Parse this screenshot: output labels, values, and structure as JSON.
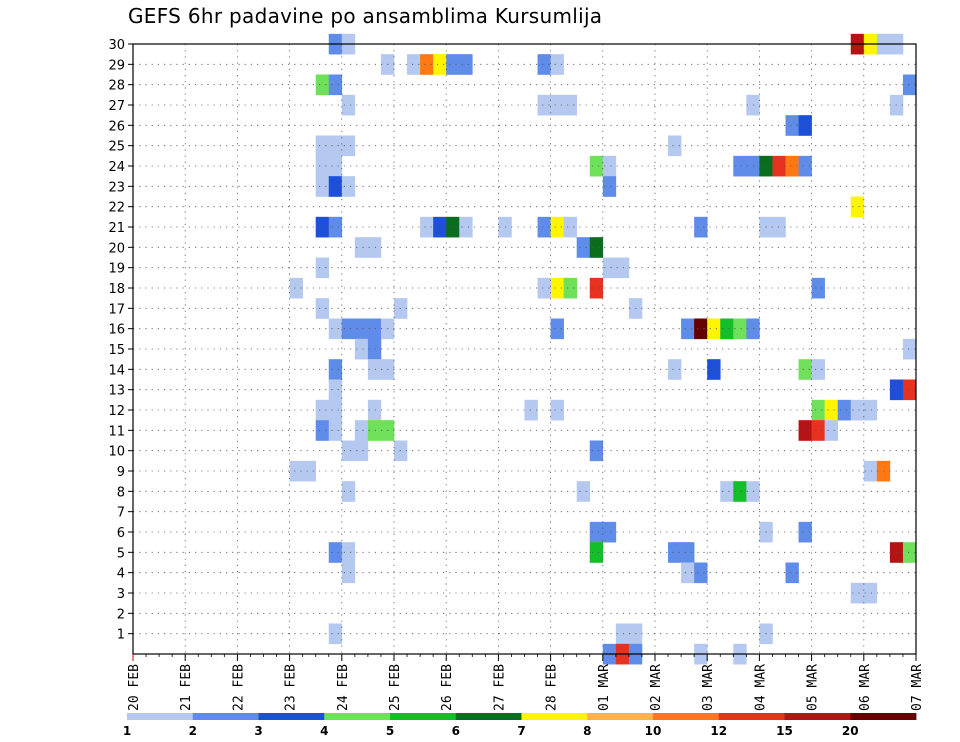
{
  "chart_data": {
    "type": "heatmap",
    "title": "GEFS 6hr padavine po ansamblima Kursumlija",
    "xlabel": "",
    "ylabel": "",
    "x_ticks": [
      "20 FEB",
      "21 FEB",
      "22 FEB",
      "23 FEB",
      "24 FEB",
      "25 FEB",
      "26 FEB",
      "27 FEB",
      "28 FEB",
      "01 MAR",
      "02 MAR",
      "03 MAR",
      "04 MAR",
      "05 MAR",
      "06 MAR",
      "07 MAR"
    ],
    "y_ticks": [
      "1",
      "2",
      "3",
      "4",
      "5",
      "6",
      "7",
      "8",
      "9",
      "10",
      "11",
      "12",
      "13",
      "14",
      "15",
      "16",
      "17",
      "18",
      "19",
      "20",
      "21",
      "22",
      "23",
      "24",
      "25",
      "26",
      "27",
      "28",
      "29",
      "30"
    ],
    "ylim": [
      0,
      30
    ],
    "time_step_hours": 6,
    "grid": true,
    "color_scale": {
      "thresholds": [
        "1",
        "2",
        "3",
        "4",
        "5",
        "6",
        "7",
        "8",
        "10",
        "12",
        "15",
        "20"
      ],
      "colors": [
        "#b4c8f0",
        "#5f8ce8",
        "#1e4fd8",
        "#6ee05a",
        "#14be28",
        "#0a6e1e",
        "#fff500",
        "#ffb440",
        "#ff7814",
        "#e6321e",
        "#b41414",
        "#640000"
      ]
    },
    "cells": [
      {
        "member": 30,
        "time": "23 FEB 18Z",
        "value": 2
      },
      {
        "member": 30,
        "time": "24 FEB 00Z",
        "value": 1
      },
      {
        "member": 30,
        "time": "05 MAR 18Z",
        "value": 15
      },
      {
        "member": 30,
        "time": "06 MAR 00Z",
        "value": 7
      },
      {
        "member": 30,
        "time": "06 MAR 06Z",
        "value": 1
      },
      {
        "member": 30,
        "time": "06 MAR 12Z",
        "value": 1
      },
      {
        "member": 29,
        "time": "24 FEB 18Z",
        "value": 1
      },
      {
        "member": 29,
        "time": "25 FEB 06Z",
        "value": 1
      },
      {
        "member": 29,
        "time": "25 FEB 12Z",
        "value": 10
      },
      {
        "member": 29,
        "time": "25 FEB 18Z",
        "value": 7
      },
      {
        "member": 29,
        "time": "26 FEB 00Z",
        "value": 2
      },
      {
        "member": 29,
        "time": "26 FEB 06Z",
        "value": 2
      },
      {
        "member": 29,
        "time": "27 FEB 18Z",
        "value": 2
      },
      {
        "member": 29,
        "time": "28 FEB 00Z",
        "value": 1
      },
      {
        "member": 28,
        "time": "23 FEB 12Z",
        "value": 4
      },
      {
        "member": 28,
        "time": "23 FEB 18Z",
        "value": 2
      },
      {
        "member": 28,
        "time": "06 MAR 18Z",
        "value": 2
      },
      {
        "member": 27,
        "time": "24 FEB 00Z",
        "value": 1
      },
      {
        "member": 27,
        "time": "27 FEB 18Z",
        "value": 1
      },
      {
        "member": 27,
        "time": "28 FEB 00Z",
        "value": 1
      },
      {
        "member": 27,
        "time": "28 FEB 06Z",
        "value": 1
      },
      {
        "member": 27,
        "time": "03 MAR 18Z",
        "value": 1
      },
      {
        "member": 27,
        "time": "06 MAR 12Z",
        "value": 1
      },
      {
        "member": 26,
        "time": "04 MAR 12Z",
        "value": 2
      },
      {
        "member": 26,
        "time": "04 MAR 18Z",
        "value": 3
      },
      {
        "member": 25,
        "time": "23 FEB 12Z",
        "value": 1
      },
      {
        "member": 25,
        "time": "23 FEB 18Z",
        "value": 1
      },
      {
        "member": 25,
        "time": "24 FEB 00Z",
        "value": 1
      },
      {
        "member": 25,
        "time": "02 MAR 06Z",
        "value": 1
      },
      {
        "member": 24,
        "time": "23 FEB 12Z",
        "value": 1
      },
      {
        "member": 24,
        "time": "23 FEB 18Z",
        "value": 1
      },
      {
        "member": 24,
        "time": "28 FEB 18Z",
        "value": 4
      },
      {
        "member": 24,
        "time": "01 MAR 00Z",
        "value": 1
      },
      {
        "member": 24,
        "time": "03 MAR 12Z",
        "value": 2
      },
      {
        "member": 24,
        "time": "03 MAR 18Z",
        "value": 2
      },
      {
        "member": 24,
        "time": "04 MAR 00Z",
        "value": 6
      },
      {
        "member": 24,
        "time": "04 MAR 06Z",
        "value": 12
      },
      {
        "member": 24,
        "time": "04 MAR 12Z",
        "value": 10
      },
      {
        "member": 24,
        "time": "04 MAR 18Z",
        "value": 2
      },
      {
        "member": 23,
        "time": "23 FEB 12Z",
        "value": 1
      },
      {
        "member": 23,
        "time": "23 FEB 18Z",
        "value": 3
      },
      {
        "member": 23,
        "time": "24 FEB 00Z",
        "value": 1
      },
      {
        "member": 23,
        "time": "01 MAR 00Z",
        "value": 2
      },
      {
        "member": 22,
        "time": "05 MAR 18Z",
        "value": 7
      },
      {
        "member": 21,
        "time": "23 FEB 12Z",
        "value": 3
      },
      {
        "member": 21,
        "time": "23 FEB 18Z",
        "value": 2
      },
      {
        "member": 21,
        "time": "25 FEB 12Z",
        "value": 1
      },
      {
        "member": 21,
        "time": "25 FEB 18Z",
        "value": 3
      },
      {
        "member": 21,
        "time": "26 FEB 00Z",
        "value": 6
      },
      {
        "member": 21,
        "time": "26 FEB 06Z",
        "value": 1
      },
      {
        "member": 21,
        "time": "27 FEB 00Z",
        "value": 1
      },
      {
        "member": 21,
        "time": "27 FEB 18Z",
        "value": 2
      },
      {
        "member": 21,
        "time": "28 FEB 00Z",
        "value": 7
      },
      {
        "member": 21,
        "time": "28 FEB 06Z",
        "value": 1
      },
      {
        "member": 21,
        "time": "02 MAR 18Z",
        "value": 2
      },
      {
        "member": 21,
        "time": "04 MAR 00Z",
        "value": 1
      },
      {
        "member": 21,
        "time": "04 MAR 06Z",
        "value": 1
      },
      {
        "member": 20,
        "time": "24 FEB 06Z",
        "value": 1
      },
      {
        "member": 20,
        "time": "24 FEB 12Z",
        "value": 1
      },
      {
        "member": 20,
        "time": "28 FEB 12Z",
        "value": 2
      },
      {
        "member": 20,
        "time": "28 FEB 18Z",
        "value": 6
      },
      {
        "member": 19,
        "time": "23 FEB 12Z",
        "value": 1
      },
      {
        "member": 19,
        "time": "01 MAR 00Z",
        "value": 1
      },
      {
        "member": 19,
        "time": "01 MAR 06Z",
        "value": 1
      },
      {
        "member": 18,
        "time": "23 FEB 00Z",
        "value": 1
      },
      {
        "member": 18,
        "time": "28 FEB 18Z",
        "value": 12
      },
      {
        "member": 18,
        "time": "28 FEB 00Z",
        "value": 7
      },
      {
        "member": 18,
        "time": "28 FEB 06Z",
        "value": 4
      },
      {
        "member": 18,
        "time": "27 FEB 18Z",
        "value": 1
      },
      {
        "member": 18,
        "time": "05 MAR 00Z",
        "value": 2
      },
      {
        "member": 17,
        "time": "23 FEB 12Z",
        "value": 1
      },
      {
        "member": 17,
        "time": "25 FEB 00Z",
        "value": 1
      },
      {
        "member": 17,
        "time": "01 MAR 12Z",
        "value": 1
      },
      {
        "member": 16,
        "time": "23 FEB 18Z",
        "value": 1
      },
      {
        "member": 16,
        "time": "24 FEB 00Z",
        "value": 2
      },
      {
        "member": 16,
        "time": "24 FEB 06Z",
        "value": 2
      },
      {
        "member": 16,
        "time": "24 FEB 12Z",
        "value": 2
      },
      {
        "member": 16,
        "time": "24 FEB 18Z",
        "value": 1
      },
      {
        "member": 16,
        "time": "28 FEB 00Z",
        "value": 2
      },
      {
        "member": 16,
        "time": "02 MAR 12Z",
        "value": 2
      },
      {
        "member": 16,
        "time": "02 MAR 18Z",
        "value": 20
      },
      {
        "member": 16,
        "time": "03 MAR 00Z",
        "value": 7
      },
      {
        "member": 16,
        "time": "03 MAR 06Z",
        "value": 5
      },
      {
        "member": 16,
        "time": "03 MAR 12Z",
        "value": 4
      },
      {
        "member": 16,
        "time": "03 MAR 18Z",
        "value": 2
      },
      {
        "member": 15,
        "time": "24 FEB 06Z",
        "value": 1
      },
      {
        "member": 15,
        "time": "24 FEB 12Z",
        "value": 2
      },
      {
        "member": 15,
        "time": "06 MAR 18Z",
        "value": 1
      },
      {
        "member": 14,
        "time": "23 FEB 18Z",
        "value": 2
      },
      {
        "member": 14,
        "time": "24 FEB 12Z",
        "value": 1
      },
      {
        "member": 14,
        "time": "24 FEB 18Z",
        "value": 1
      },
      {
        "member": 14,
        "time": "02 MAR 06Z",
        "value": 1
      },
      {
        "member": 14,
        "time": "03 MAR 00Z",
        "value": 3
      },
      {
        "member": 14,
        "time": "04 MAR 18Z",
        "value": 4
      },
      {
        "member": 14,
        "time": "05 MAR 00Z",
        "value": 1
      },
      {
        "member": 13,
        "time": "23 FEB 18Z",
        "value": 1
      },
      {
        "member": 13,
        "time": "06 MAR 12Z",
        "value": 3
      },
      {
        "member": 13,
        "time": "06 MAR 18Z",
        "value": 12
      },
      {
        "member": 12,
        "time": "23 FEB 12Z",
        "value": 1
      },
      {
        "member": 12,
        "time": "23 FEB 18Z",
        "value": 1
      },
      {
        "member": 12,
        "time": "24 FEB 12Z",
        "value": 1
      },
      {
        "member": 12,
        "time": "27 FEB 12Z",
        "value": 1
      },
      {
        "member": 12,
        "time": "28 FEB 00Z",
        "value": 1
      },
      {
        "member": 12,
        "time": "05 MAR 00Z",
        "value": 4
      },
      {
        "member": 12,
        "time": "05 MAR 06Z",
        "value": 7
      },
      {
        "member": 12,
        "time": "05 MAR 12Z",
        "value": 2
      },
      {
        "member": 12,
        "time": "05 MAR 18Z",
        "value": 1
      },
      {
        "member": 12,
        "time": "06 MAR 00Z",
        "value": 1
      },
      {
        "member": 11,
        "time": "23 FEB 12Z",
        "value": 2
      },
      {
        "member": 11,
        "time": "23 FEB 18Z",
        "value": 1
      },
      {
        "member": 11,
        "time": "24 FEB 06Z",
        "value": 1
      },
      {
        "member": 11,
        "time": "24 FEB 12Z",
        "value": 4
      },
      {
        "member": 11,
        "time": "24 FEB 18Z",
        "value": 4
      },
      {
        "member": 11,
        "time": "04 MAR 18Z",
        "value": 15
      },
      {
        "member": 11,
        "time": "05 MAR 00Z",
        "value": 12
      },
      {
        "member": 11,
        "time": "05 MAR 06Z",
        "value": 1
      },
      {
        "member": 10,
        "time": "24 FEB 00Z",
        "value": 1
      },
      {
        "member": 10,
        "time": "24 FEB 06Z",
        "value": 1
      },
      {
        "member": 10,
        "time": "25 FEB 00Z",
        "value": 1
      },
      {
        "member": 10,
        "time": "28 FEB 18Z",
        "value": 2
      },
      {
        "member": 9,
        "time": "23 FEB 00Z",
        "value": 1
      },
      {
        "member": 9,
        "time": "23 FEB 06Z",
        "value": 1
      },
      {
        "member": 9,
        "time": "06 MAR 00Z",
        "value": 1
      },
      {
        "member": 9,
        "time": "06 MAR 06Z",
        "value": 10
      },
      {
        "member": 8,
        "time": "24 FEB 00Z",
        "value": 1
      },
      {
        "member": 8,
        "time": "28 FEB 12Z",
        "value": 1
      },
      {
        "member": 8,
        "time": "03 MAR 06Z",
        "value": 1
      },
      {
        "member": 8,
        "time": "03 MAR 12Z",
        "value": 5
      },
      {
        "member": 8,
        "time": "03 MAR 18Z",
        "value": 1
      },
      {
        "member": 6,
        "time": "28 FEB 18Z",
        "value": 2
      },
      {
        "member": 6,
        "time": "01 MAR 00Z",
        "value": 2
      },
      {
        "member": 6,
        "time": "04 MAR 00Z",
        "value": 1
      },
      {
        "member": 6,
        "time": "04 MAR 18Z",
        "value": 2
      },
      {
        "member": 5,
        "time": "23 FEB 18Z",
        "value": 2
      },
      {
        "member": 5,
        "time": "24 FEB 00Z",
        "value": 1
      },
      {
        "member": 5,
        "time": "28 FEB 18Z",
        "value": 5
      },
      {
        "member": 5,
        "time": "02 MAR 06Z",
        "value": 2
      },
      {
        "member": 5,
        "time": "02 MAR 12Z",
        "value": 2
      },
      {
        "member": 5,
        "time": "06 MAR 12Z",
        "value": 15
      },
      {
        "member": 5,
        "time": "06 MAR 18Z",
        "value": 4
      },
      {
        "member": 4,
        "time": "24 FEB 00Z",
        "value": 1
      },
      {
        "member": 4,
        "time": "02 MAR 12Z",
        "value": 1
      },
      {
        "member": 4,
        "time": "02 MAR 18Z",
        "value": 2
      },
      {
        "member": 4,
        "time": "04 MAR 12Z",
        "value": 2
      },
      {
        "member": 3,
        "time": "05 MAR 18Z",
        "value": 1
      },
      {
        "member": 3,
        "time": "06 MAR 00Z",
        "value": 1
      },
      {
        "member": 1,
        "time": "23 FEB 18Z",
        "value": 1
      },
      {
        "member": 1,
        "time": "01 MAR 06Z",
        "value": 1
      },
      {
        "member": 1,
        "time": "01 MAR 12Z",
        "value": 1
      },
      {
        "member": 1,
        "time": "04 MAR 00Z",
        "value": 1
      },
      {
        "member": 0,
        "time": "01 MAR 00Z",
        "value": 2
      },
      {
        "member": 0,
        "time": "01 MAR 06Z",
        "value": 12
      },
      {
        "member": 0,
        "time": "01 MAR 12Z",
        "value": 2
      },
      {
        "member": 0,
        "time": "02 MAR 18Z",
        "value": 1
      },
      {
        "member": 0,
        "time": "03 MAR 12Z",
        "value": 1
      }
    ]
  }
}
